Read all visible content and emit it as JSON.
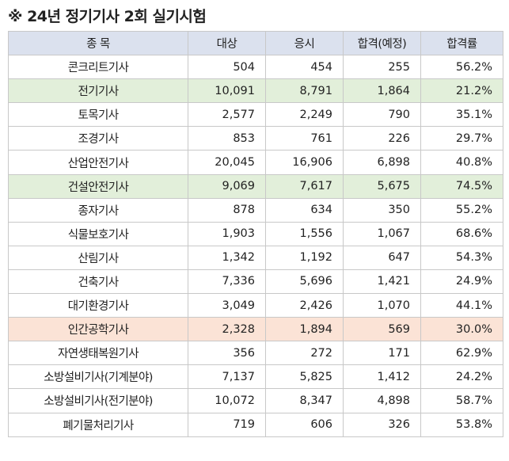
{
  "title": "※ 24년 정기기사 2회 실기시험",
  "headers": [
    "종  목",
    "대상",
    "응시",
    "합격(예정)",
    "합격률"
  ],
  "rows": [
    {
      "name": "콘크리트기사",
      "target": "504",
      "applied": "454",
      "passed": "255",
      "rate": "56.2%",
      "highlight": "none"
    },
    {
      "name": "전기기사",
      "target": "10,091",
      "applied": "8,791",
      "passed": "1,864",
      "rate": "21.2%",
      "highlight": "green"
    },
    {
      "name": "토목기사",
      "target": "2,577",
      "applied": "2,249",
      "passed": "790",
      "rate": "35.1%",
      "highlight": "none"
    },
    {
      "name": "조경기사",
      "target": "853",
      "applied": "761",
      "passed": "226",
      "rate": "29.7%",
      "highlight": "none"
    },
    {
      "name": "산업안전기사",
      "target": "20,045",
      "applied": "16,906",
      "passed": "6,898",
      "rate": "40.8%",
      "highlight": "none"
    },
    {
      "name": "건설안전기사",
      "target": "9,069",
      "applied": "7,617",
      "passed": "5,675",
      "rate": "74.5%",
      "highlight": "green"
    },
    {
      "name": "종자기사",
      "target": "878",
      "applied": "634",
      "passed": "350",
      "rate": "55.2%",
      "highlight": "none"
    },
    {
      "name": "식물보호기사",
      "target": "1,903",
      "applied": "1,556",
      "passed": "1,067",
      "rate": "68.6%",
      "highlight": "none"
    },
    {
      "name": "산림기사",
      "target": "1,342",
      "applied": "1,192",
      "passed": "647",
      "rate": "54.3%",
      "highlight": "none"
    },
    {
      "name": "건축기사",
      "target": "7,336",
      "applied": "5,696",
      "passed": "1,421",
      "rate": "24.9%",
      "highlight": "none"
    },
    {
      "name": "대기환경기사",
      "target": "3,049",
      "applied": "2,426",
      "passed": "1,070",
      "rate": "44.1%",
      "highlight": "none"
    },
    {
      "name": "인간공학기사",
      "target": "2,328",
      "applied": "1,894",
      "passed": "569",
      "rate": "30.0%",
      "highlight": "peach"
    },
    {
      "name": "자연생태복원기사",
      "target": "356",
      "applied": "272",
      "passed": "171",
      "rate": "62.9%",
      "highlight": "none"
    },
    {
      "name": "소방설비기사(기계분야)",
      "target": "7,137",
      "applied": "5,825",
      "passed": "1,412",
      "rate": "24.2%",
      "highlight": "none"
    },
    {
      "name": "소방설비기사(전기분야)",
      "target": "10,072",
      "applied": "8,347",
      "passed": "4,898",
      "rate": "58.7%",
      "highlight": "none"
    },
    {
      "name": "폐기물처리기사",
      "target": "719",
      "applied": "606",
      "passed": "326",
      "rate": "53.8%",
      "highlight": "none"
    }
  ],
  "colors": {
    "header_bg": "#dbe1ee",
    "green_highlight": "#e2efda",
    "peach_highlight": "#fbe3d6",
    "border": "#c8c8c8"
  }
}
